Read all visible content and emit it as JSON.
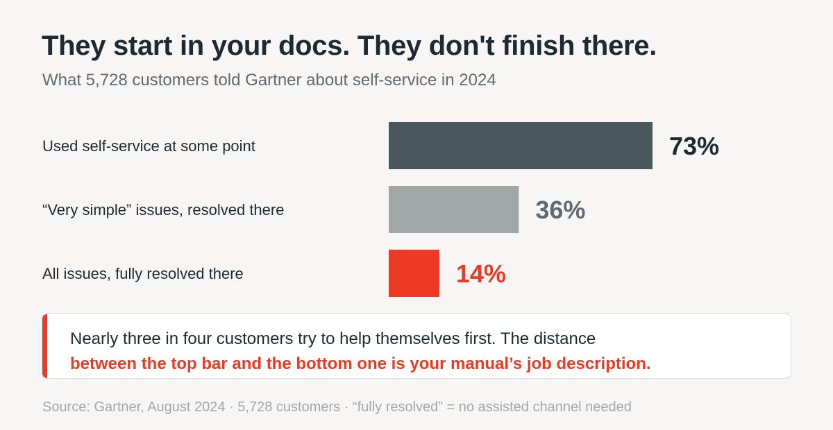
{
  "header": {
    "title": "They start in your docs. They don't finish there.",
    "subtitle": "What 5,728 customers told Gartner about self-service in 2024"
  },
  "colors": {
    "background": "#f7f6f4",
    "bar_dark": "#4a585e",
    "bar_light": "#a1a6a7",
    "accent_red": "#ee3a24",
    "label_dark": "#1b2a33",
    "label_gray": "#5f6b72"
  },
  "chart_data": {
    "type": "bar",
    "orientation": "horizontal",
    "categories": [
      "Used self-service at some point",
      "“Very simple” issues, resolved there",
      "All issues, fully resolved there"
    ],
    "values": [
      73,
      36,
      14
    ],
    "value_labels": [
      "73%",
      "36%",
      "14%"
    ],
    "bar_colors": [
      "#4a585e",
      "#a1a6a7",
      "#ee3a24"
    ],
    "value_label_colors": [
      "#1b2a33",
      "#5f6b72",
      "#ee3a24"
    ],
    "xlim": [
      0,
      100
    ],
    "grid": false,
    "title": "They start in your docs. They don't finish there.",
    "xlabel": "",
    "ylabel": ""
  },
  "callout": {
    "text_plain": "Nearly three in four customers try to help themselves first. The distance",
    "text_highlight": "between the top bar and the bottom one is your manual’s job description."
  },
  "footer": {
    "source": "Source: Gartner, August 2024 · 5,728 customers · “fully resolved” = no assisted channel needed"
  }
}
